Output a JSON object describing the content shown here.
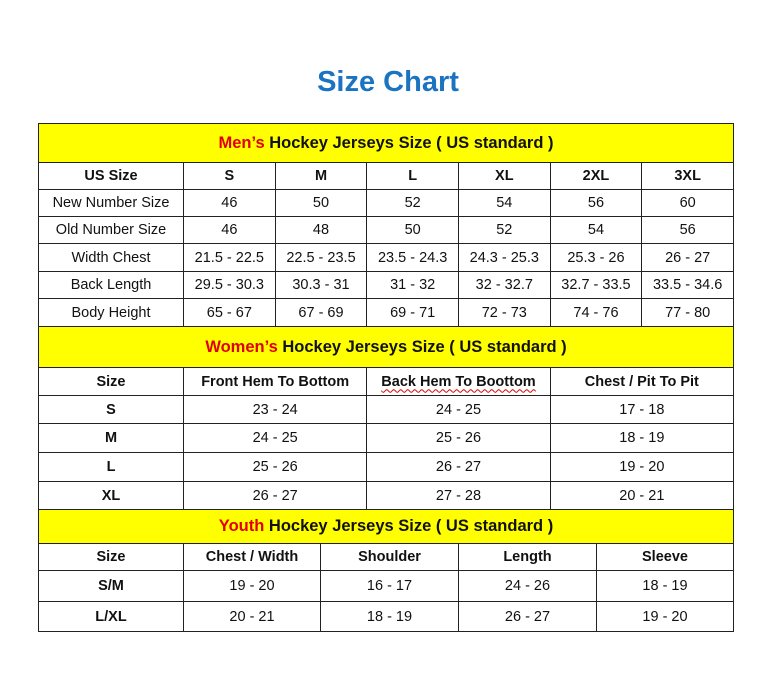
{
  "title": "Size Chart",
  "colors": {
    "title": "#1a74c2",
    "header_bg": "#ffff00",
    "header_accent": "#e00000"
  },
  "mens": {
    "header_accent": "Men’s",
    "header_rest": "Hockey Jerseys Size ( US standard )",
    "columns": [
      "US Size",
      "S",
      "M",
      "L",
      "XL",
      "2XL",
      "3XL"
    ],
    "rows": [
      [
        "New Number Size",
        "46",
        "50",
        "52",
        "54",
        "56",
        "60"
      ],
      [
        "Old Number Size",
        "46",
        "48",
        "50",
        "52",
        "54",
        "56"
      ],
      [
        "Width Chest",
        "21.5 - 22.5",
        "22.5 - 23.5",
        "23.5 - 24.3",
        "24.3 - 25.3",
        "25.3 - 26",
        "26 - 27"
      ],
      [
        "Back Length",
        "29.5 - 30.3",
        "30.3 - 31",
        "31 - 32",
        "32 - 32.7",
        "32.7 - 33.5",
        "33.5 - 34.6"
      ],
      [
        "Body Height",
        "65 - 67",
        "67 - 69",
        "69 - 71",
        "72 - 73",
        "74 - 76",
        "77 - 80"
      ]
    ]
  },
  "womens": {
    "header_accent": "Women’s",
    "header_rest": "Hockey Jerseys Size ( US standard )",
    "columns": [
      "Size",
      "Front Hem To Bottom",
      "Back Hem To Boottom",
      "Chest / Pit To Pit"
    ],
    "rows": [
      [
        "S",
        "23 - 24",
        "24 - 25",
        "17 - 18"
      ],
      [
        "M",
        "24 - 25",
        "25 - 26",
        "18 - 19"
      ],
      [
        "L",
        "25 - 26",
        "26 - 27",
        "19 - 20"
      ],
      [
        "XL",
        "26 - 27",
        "27 - 28",
        "20 - 21"
      ]
    ]
  },
  "youth": {
    "header_accent": "Youth",
    "header_rest": "Hockey Jerseys Size ( US standard )",
    "columns": [
      "Size",
      "Chest / Width",
      "Shoulder",
      "Length",
      "Sleeve"
    ],
    "rows": [
      [
        "S/M",
        "19 - 20",
        "16 - 17",
        "24 - 26",
        "18 - 19"
      ],
      [
        "L/XL",
        "20 - 21",
        "18 - 19",
        "26 - 27",
        "19 - 20"
      ]
    ]
  }
}
